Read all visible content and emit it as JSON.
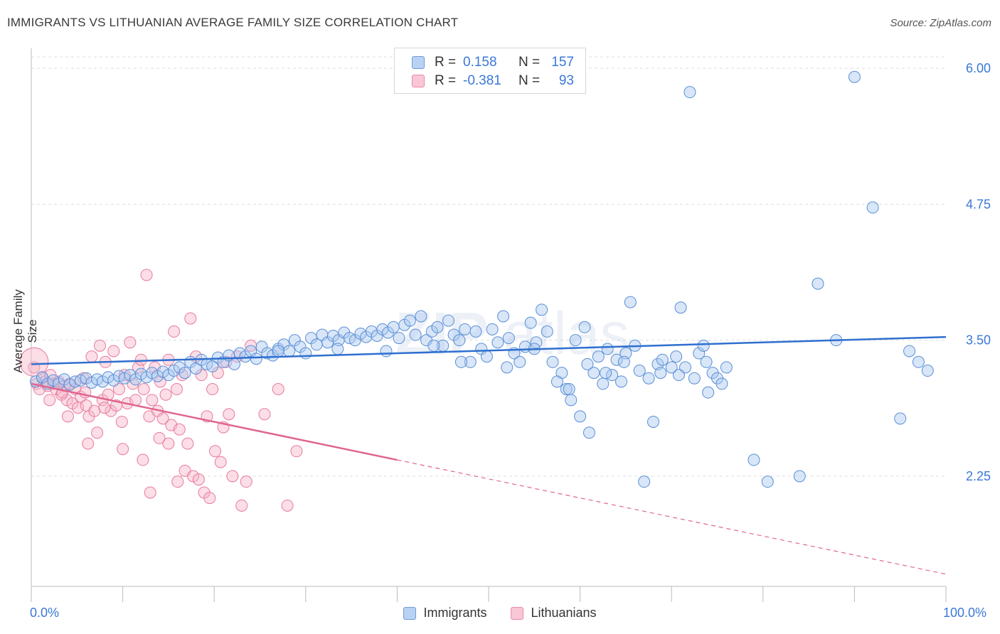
{
  "header": {
    "title": "IMMIGRANTS VS LITHUANIAN AVERAGE FAMILY SIZE CORRELATION CHART",
    "source": "Source: ZipAtlas.com"
  },
  "watermark": {
    "text_bold": "ZIP",
    "text_light": "atlas"
  },
  "legend_top": {
    "rows": [
      {
        "r_label": "R =",
        "r_value": "0.158",
        "n_label": "N =",
        "n_value": "157",
        "color": "#a9c7f0"
      },
      {
        "r_label": "R =",
        "r_value": "-0.381",
        "n_label": "N =",
        "n_value": "93",
        "color": "#f7b6c8"
      }
    ]
  },
  "legend_bottom": {
    "items": [
      {
        "label": "Immigrants",
        "color": "#a9c7f0"
      },
      {
        "label": "Lithuanians",
        "color": "#f7b6c8"
      }
    ]
  },
  "axes": {
    "y_title": "Average Family Size",
    "x_left_label": "0.0%",
    "x_right_label": "100.0%"
  },
  "colors": {
    "immigrants_fill": "rgba(169,199,240,0.45)",
    "immigrants_stroke": "#5a8fd6",
    "immigrants_line": "#2f6fcf",
    "lithuanians_fill": "rgba(247,182,200,0.45)",
    "lithuanians_stroke": "#e87aa0",
    "lithuanians_line": "#e0668f",
    "tick_label": "#3a78d8",
    "grid": "#dddddd"
  },
  "chart_data": {
    "type": "scatter",
    "title": "IMMIGRANTS VS LITHUANIAN AVERAGE FAMILY SIZE CORRELATION CHART",
    "xlabel": "",
    "ylabel": "Average Family Size",
    "xlim": [
      0,
      100
    ],
    "ylim": [
      1.25,
      6.2
    ],
    "y_ticks": [
      2.25,
      3.5,
      4.75,
      6.0
    ],
    "y_tick_labels": [
      "2.25",
      "3.50",
      "4.75",
      "6.00"
    ],
    "x_tick_labels": [
      "0.0%",
      "100.0%"
    ],
    "grid": true,
    "legend_position": "top-center",
    "series": [
      {
        "name": "Immigrants",
        "r": 0.158,
        "n": 157,
        "trend": {
          "x": [
            0,
            100
          ],
          "y": [
            3.28,
            3.53
          ]
        },
        "points": [
          [
            0.5,
            3.12
          ],
          [
            1.2,
            3.16
          ],
          [
            1.8,
            3.1
          ],
          [
            2.4,
            3.13
          ],
          [
            3.0,
            3.1
          ],
          [
            3.6,
            3.14
          ],
          [
            4.2,
            3.09
          ],
          [
            4.8,
            3.12
          ],
          [
            5.4,
            3.13
          ],
          [
            6.0,
            3.15
          ],
          [
            6.6,
            3.11
          ],
          [
            7.2,
            3.14
          ],
          [
            7.8,
            3.12
          ],
          [
            8.4,
            3.16
          ],
          [
            9.0,
            3.13
          ],
          [
            9.6,
            3.17
          ],
          [
            10.2,
            3.15
          ],
          [
            10.8,
            3.18
          ],
          [
            11.4,
            3.14
          ],
          [
            12.0,
            3.19
          ],
          [
            12.6,
            3.16
          ],
          [
            13.2,
            3.2
          ],
          [
            13.8,
            3.17
          ],
          [
            14.4,
            3.21
          ],
          [
            15.0,
            3.18
          ],
          [
            15.6,
            3.22
          ],
          [
            16.2,
            3.25
          ],
          [
            16.8,
            3.2
          ],
          [
            17.4,
            3.3
          ],
          [
            18.0,
            3.24
          ],
          [
            18.6,
            3.32
          ],
          [
            19.2,
            3.28
          ],
          [
            19.8,
            3.26
          ],
          [
            20.4,
            3.34
          ],
          [
            21.0,
            3.3
          ],
          [
            21.6,
            3.36
          ],
          [
            22.2,
            3.28
          ],
          [
            22.8,
            3.38
          ],
          [
            23.4,
            3.35
          ],
          [
            24.0,
            3.4
          ],
          [
            24.6,
            3.33
          ],
          [
            25.2,
            3.44
          ],
          [
            25.8,
            3.38
          ],
          [
            26.4,
            3.36
          ],
          [
            27.0,
            3.42
          ],
          [
            27.6,
            3.46
          ],
          [
            28.2,
            3.4
          ],
          [
            28.8,
            3.5
          ],
          [
            29.4,
            3.44
          ],
          [
            30.0,
            3.38
          ],
          [
            30.6,
            3.52
          ],
          [
            31.2,
            3.46
          ],
          [
            31.8,
            3.55
          ],
          [
            32.4,
            3.48
          ],
          [
            33.0,
            3.54
          ],
          [
            33.6,
            3.5
          ],
          [
            34.2,
            3.57
          ],
          [
            34.8,
            3.52
          ],
          [
            35.4,
            3.5
          ],
          [
            36.0,
            3.56
          ],
          [
            36.6,
            3.53
          ],
          [
            37.2,
            3.58
          ],
          [
            37.8,
            3.54
          ],
          [
            38.4,
            3.6
          ],
          [
            39.0,
            3.57
          ],
          [
            39.6,
            3.62
          ],
          [
            40.2,
            3.52
          ],
          [
            40.8,
            3.64
          ],
          [
            41.4,
            3.68
          ],
          [
            42.0,
            3.55
          ],
          [
            42.6,
            3.72
          ],
          [
            43.2,
            3.5
          ],
          [
            43.8,
            3.58
          ],
          [
            44.4,
            3.62
          ],
          [
            45.0,
            3.45
          ],
          [
            45.6,
            3.68
          ],
          [
            46.2,
            3.55
          ],
          [
            46.8,
            3.5
          ],
          [
            47.4,
            3.6
          ],
          [
            48.0,
            3.3
          ],
          [
            48.6,
            3.58
          ],
          [
            49.2,
            3.42
          ],
          [
            49.8,
            3.35
          ],
          [
            50.4,
            3.6
          ],
          [
            51.0,
            3.48
          ],
          [
            51.6,
            3.72
          ],
          [
            52.2,
            3.52
          ],
          [
            52.8,
            3.38
          ],
          [
            53.4,
            3.3
          ],
          [
            54.0,
            3.44
          ],
          [
            54.6,
            3.66
          ],
          [
            55.2,
            3.48
          ],
          [
            55.8,
            3.78
          ],
          [
            56.4,
            3.58
          ],
          [
            57.0,
            3.3
          ],
          [
            58.0,
            3.2
          ],
          [
            58.5,
            3.05
          ],
          [
            59.0,
            2.95
          ],
          [
            59.5,
            3.5
          ],
          [
            60.0,
            2.8
          ],
          [
            60.5,
            3.62
          ],
          [
            61.0,
            2.65
          ],
          [
            61.5,
            3.2
          ],
          [
            62.0,
            3.35
          ],
          [
            62.5,
            3.1
          ],
          [
            63.0,
            3.42
          ],
          [
            63.5,
            3.18
          ],
          [
            64.0,
            3.32
          ],
          [
            64.5,
            3.12
          ],
          [
            65.0,
            3.38
          ],
          [
            65.5,
            3.85
          ],
          [
            66.0,
            3.45
          ],
          [
            66.5,
            3.22
          ],
          [
            67.0,
            2.2
          ],
          [
            68.0,
            2.75
          ],
          [
            68.5,
            3.28
          ],
          [
            69.0,
            3.32
          ],
          [
            70.0,
            3.25
          ],
          [
            70.5,
            3.35
          ],
          [
            71.0,
            3.8
          ],
          [
            71.5,
            3.25
          ],
          [
            72.5,
            3.15
          ],
          [
            73.0,
            3.38
          ],
          [
            73.5,
            3.45
          ],
          [
            74.0,
            3.02
          ],
          [
            74.5,
            3.2
          ],
          [
            75.0,
            3.15
          ],
          [
            76.0,
            3.25
          ],
          [
            79.0,
            2.4
          ],
          [
            80.5,
            2.2
          ],
          [
            84.0,
            2.25
          ],
          [
            86.0,
            4.02
          ],
          [
            88.0,
            3.5
          ],
          [
            90.0,
            5.92
          ],
          [
            92.0,
            4.72
          ],
          [
            95.0,
            2.78
          ],
          [
            96.0,
            3.4
          ],
          [
            97.0,
            3.3
          ],
          [
            98.0,
            3.22
          ],
          [
            72.0,
            5.78
          ],
          [
            27.0,
            3.4
          ],
          [
            33.5,
            3.42
          ],
          [
            38.8,
            3.4
          ],
          [
            44.0,
            3.45
          ],
          [
            47.0,
            3.3
          ],
          [
            52.0,
            3.25
          ],
          [
            55.0,
            3.42
          ],
          [
            57.5,
            3.12
          ],
          [
            60.8,
            3.28
          ],
          [
            64.8,
            3.3
          ],
          [
            67.5,
            3.15
          ],
          [
            68.8,
            3.2
          ],
          [
            70.8,
            3.18
          ],
          [
            73.8,
            3.3
          ],
          [
            75.5,
            3.1
          ],
          [
            62.8,
            3.2
          ],
          [
            58.8,
            3.05
          ]
        ]
      },
      {
        "name": "Lithuanians",
        "r": -0.381,
        "n": 93,
        "trend": {
          "x": [
            0,
            40
          ],
          "y": [
            3.1,
            2.4
          ]
        },
        "trend_dashed": {
          "x": [
            40,
            100
          ],
          "y": [
            2.4,
            1.35
          ]
        },
        "points": [
          [
            0.3,
            3.25
          ],
          [
            0.6,
            3.1
          ],
          [
            0.9,
            3.05
          ],
          [
            1.2,
            3.15
          ],
          [
            1.5,
            3.12
          ],
          [
            1.8,
            3.08
          ],
          [
            2.1,
            3.18
          ],
          [
            2.4,
            3.1
          ],
          [
            2.7,
            3.05
          ],
          [
            3.0,
            3.12
          ],
          [
            3.3,
            3.0
          ],
          [
            3.6,
            3.08
          ],
          [
            3.9,
            2.95
          ],
          [
            4.2,
            3.1
          ],
          [
            4.5,
            2.92
          ],
          [
            4.8,
            3.05
          ],
          [
            5.1,
            2.88
          ],
          [
            5.4,
            2.98
          ],
          [
            5.7,
            3.15
          ],
          [
            6.0,
            2.9
          ],
          [
            6.3,
            2.8
          ],
          [
            6.6,
            3.35
          ],
          [
            6.9,
            2.85
          ],
          [
            7.2,
            2.65
          ],
          [
            7.5,
            3.45
          ],
          [
            7.8,
            2.95
          ],
          [
            8.1,
            3.3
          ],
          [
            8.4,
            3.0
          ],
          [
            8.7,
            2.85
          ],
          [
            9.0,
            3.4
          ],
          [
            9.3,
            2.9
          ],
          [
            9.6,
            3.05
          ],
          [
            9.9,
            2.75
          ],
          [
            10.2,
            3.18
          ],
          [
            10.5,
            2.92
          ],
          [
            10.8,
            3.48
          ],
          [
            11.1,
            3.1
          ],
          [
            11.4,
            2.95
          ],
          [
            11.7,
            3.25
          ],
          [
            12.0,
            3.32
          ],
          [
            12.3,
            3.05
          ],
          [
            12.6,
            4.1
          ],
          [
            12.9,
            2.8
          ],
          [
            13.2,
            2.95
          ],
          [
            13.5,
            3.25
          ],
          [
            13.8,
            2.85
          ],
          [
            14.1,
            3.12
          ],
          [
            14.4,
            2.78
          ],
          [
            14.7,
            3.0
          ],
          [
            15.0,
            3.32
          ],
          [
            15.3,
            2.72
          ],
          [
            15.6,
            3.58
          ],
          [
            15.9,
            3.05
          ],
          [
            16.2,
            2.68
          ],
          [
            16.5,
            3.18
          ],
          [
            16.8,
            2.3
          ],
          [
            17.1,
            2.55
          ],
          [
            17.4,
            3.7
          ],
          [
            17.7,
            2.25
          ],
          [
            18.0,
            3.35
          ],
          [
            18.3,
            2.22
          ],
          [
            18.6,
            3.18
          ],
          [
            18.9,
            2.1
          ],
          [
            19.2,
            2.8
          ],
          [
            19.5,
            2.05
          ],
          [
            19.8,
            3.05
          ],
          [
            20.1,
            2.48
          ],
          [
            20.4,
            3.2
          ],
          [
            20.7,
            2.38
          ],
          [
            21.0,
            2.7
          ],
          [
            21.3,
            3.3
          ],
          [
            21.6,
            2.82
          ],
          [
            22.0,
            2.25
          ],
          [
            22.5,
            3.35
          ],
          [
            23.0,
            1.98
          ],
          [
            23.5,
            2.2
          ],
          [
            24.0,
            3.45
          ],
          [
            25.5,
            2.82
          ],
          [
            27.0,
            3.05
          ],
          [
            28.0,
            1.98
          ],
          [
            29.0,
            2.48
          ],
          [
            3.4,
            3.02
          ],
          [
            5.9,
            3.02
          ],
          [
            8.0,
            2.88
          ],
          [
            10.0,
            2.5
          ],
          [
            12.2,
            2.4
          ],
          [
            13.0,
            2.1
          ],
          [
            14.0,
            2.6
          ],
          [
            15.0,
            2.55
          ],
          [
            16.0,
            2.2
          ],
          [
            2.0,
            2.95
          ],
          [
            4.0,
            2.8
          ],
          [
            6.2,
            2.55
          ]
        ]
      }
    ]
  }
}
